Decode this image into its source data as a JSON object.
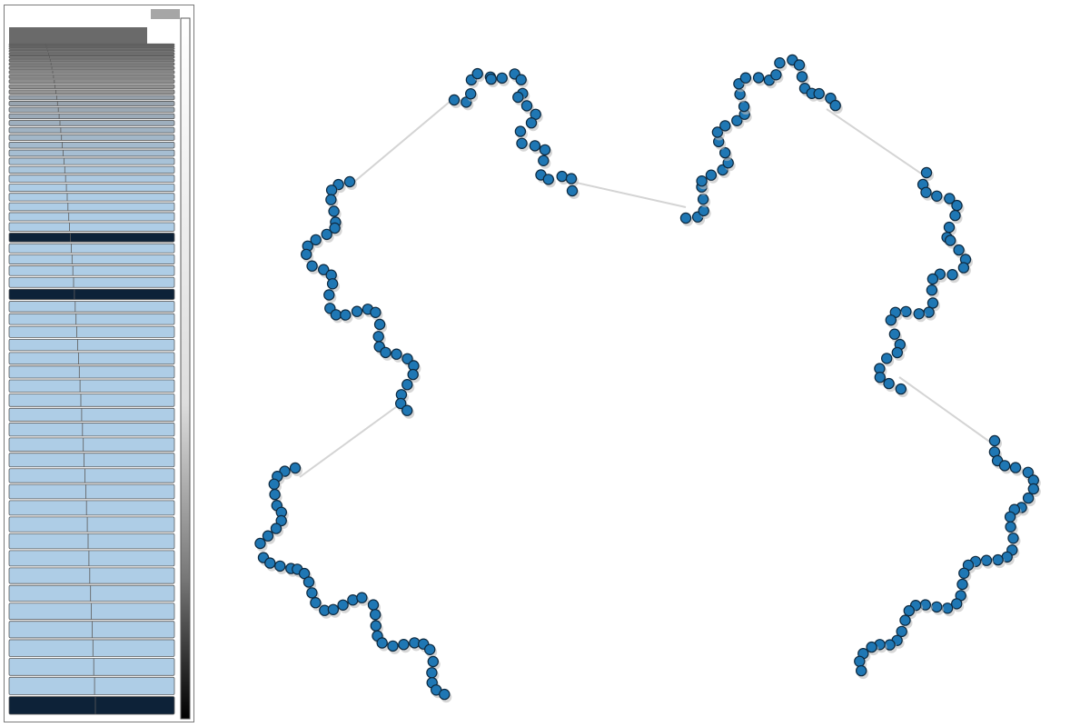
{
  "sidebar": {
    "row_count": 63,
    "highlighted_rows": [
      31,
      36,
      62
    ],
    "colors": {
      "frame_border": "#7a7a7a",
      "top_button": "#a6a6a6",
      "header_fill": "#6a6a6a",
      "row_fill_light": "#aecde6",
      "row_fill_dark": "#0d2238",
      "row_border": "#5b5b5b",
      "scale_top": "#ffffff",
      "scale_bottom": "#000000"
    }
  },
  "graph": {
    "colors": {
      "node_fill": "#1f77b4",
      "node_stroke": "#0e2a40",
      "node_shadow": "#bbbbbb",
      "edge": "#d4d4d4"
    },
    "node_count": 260,
    "ring_count": 4
  }
}
